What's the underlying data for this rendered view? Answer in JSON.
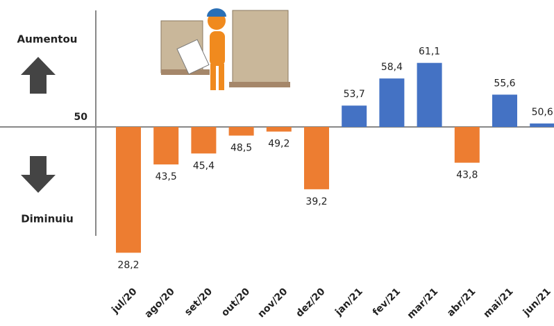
{
  "chart_data": {
    "type": "bar",
    "up_label": "Aumentou",
    "down_label": "Diminuiu",
    "categories": [
      "jul/20",
      "ago/20",
      "set/20",
      "out/20",
      "nov/20",
      "dez/20",
      "jan/21",
      "fev/21",
      "mar/21",
      "abr/21",
      "mai/21",
      "jun/21"
    ],
    "values": [
      28.2,
      43.5,
      45.4,
      48.5,
      49.2,
      39.2,
      53.7,
      58.4,
      61.1,
      43.8,
      55.6,
      50.6
    ],
    "value_labels": [
      "28,2",
      "43,5",
      "45,4",
      "48,5",
      "49,2",
      "39,2",
      "53,7",
      "58,4",
      "61,1",
      "43,8",
      "55,6",
      "50,6"
    ],
    "colors": [
      "#ed7d31",
      "#ed7d31",
      "#ed7d31",
      "#ed7d31",
      "#ed7d31",
      "#ed7d31",
      "#4472c4",
      "#4472c4",
      "#4472c4",
      "#ed7d31",
      "#4472c4",
      "#4472c4"
    ],
    "ylim": [
      25,
      72
    ],
    "yticks": [
      50
    ]
  }
}
